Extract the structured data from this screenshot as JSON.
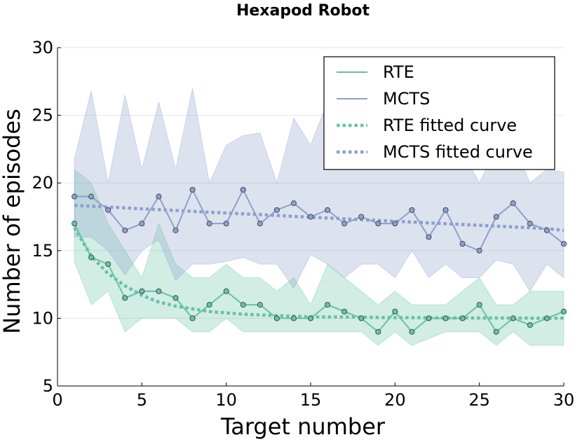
{
  "chart_data": {
    "type": "line",
    "title": "Hexapod Robot",
    "xlabel": "Target number",
    "ylabel": "Number of episodes",
    "xlim": [
      0,
      30
    ],
    "ylim": [
      5,
      30
    ],
    "xticks": [
      0,
      5,
      10,
      15,
      20,
      25,
      30
    ],
    "yticks": [
      5,
      10,
      15,
      20,
      25,
      30
    ],
    "grid": true,
    "legend_position": "top-right",
    "x": [
      1,
      2,
      3,
      4,
      5,
      6,
      7,
      8,
      9,
      10,
      11,
      12,
      13,
      14,
      15,
      16,
      17,
      18,
      19,
      20,
      21,
      22,
      23,
      24,
      25,
      26,
      27,
      28,
      29,
      30
    ],
    "series": [
      {
        "name": "RTE",
        "style": "solid-with-markers",
        "color": "#66c2a5",
        "values": [
          17,
          14.5,
          14,
          11.5,
          12,
          12,
          11.5,
          10,
          11,
          12,
          11,
          11,
          10,
          10,
          10,
          11,
          10.5,
          10,
          9,
          10.5,
          9,
          10,
          10,
          10,
          11,
          9,
          10,
          9.5,
          10,
          10.5
        ],
        "band_upper": [
          21,
          20,
          17,
          15,
          13,
          17,
          14,
          13,
          13,
          14,
          13,
          13,
          12,
          13,
          11,
          14,
          13,
          12,
          11,
          12,
          11,
          11,
          11,
          12,
          13,
          11,
          11,
          12,
          12,
          12
        ],
        "band_lower": [
          14.2,
          11,
          12,
          9,
          10,
          10,
          10,
          9,
          9,
          10,
          9,
          9,
          9,
          9,
          9,
          9,
          9,
          9,
          8,
          9,
          8,
          8.5,
          9,
          9,
          9,
          8,
          9,
          8,
          8,
          8
        ]
      },
      {
        "name": "MCTS",
        "style": "solid-with-markers",
        "color": "#8da0cb",
        "values": [
          19,
          19,
          18,
          16.5,
          17,
          19,
          16.5,
          19.5,
          17,
          17,
          19.5,
          17,
          18,
          18.5,
          17.5,
          18,
          17,
          17.5,
          17,
          17,
          18,
          16,
          18,
          15.5,
          15,
          17.5,
          18.5,
          17,
          16.5,
          15.5
        ],
        "band_upper": [
          21.8,
          26.8,
          20,
          26.5,
          21,
          26,
          21,
          27,
          20,
          22.8,
          23.5,
          23.7,
          20,
          24.8,
          22.8,
          26,
          24,
          24.4,
          24,
          23.6,
          25.9,
          23,
          24,
          22.4,
          20,
          22.6,
          23,
          20,
          21,
          20.8
        ],
        "band_lower": [
          16,
          16,
          15,
          13.2,
          15,
          15.8,
          12.8,
          14,
          14,
          14.2,
          14.5,
          14,
          14,
          12.2,
          14.7,
          14,
          13,
          14,
          14,
          13,
          15,
          13,
          14,
          13,
          13,
          14.3,
          14,
          12,
          14,
          13
        ]
      },
      {
        "name": "RTE fitted curve",
        "style": "dotted",
        "color": "#66c2a5",
        "values": [
          16.7,
          14.6,
          13.3,
          12.4,
          11.7,
          11.2,
          10.9,
          10.7,
          10.5,
          10.4,
          10.3,
          10.25,
          10.2,
          10.15,
          10.1,
          10.1,
          10.1,
          10.08,
          10.06,
          10.05,
          10.05,
          10.04,
          10.03,
          10.03,
          10.02,
          10.02,
          10.02,
          10.01,
          10.01,
          10.01
        ]
      },
      {
        "name": "MCTS fitted curve",
        "style": "dotted",
        "color": "#8da0cb",
        "values": [
          18.35,
          18.29,
          18.22,
          18.16,
          18.09,
          18.03,
          17.97,
          17.9,
          17.84,
          17.78,
          17.72,
          17.66,
          17.6,
          17.53,
          17.47,
          17.41,
          17.35,
          17.29,
          17.23,
          17.17,
          17.11,
          17.05,
          16.99,
          16.93,
          16.87,
          16.81,
          16.75,
          16.69,
          16.63,
          16.5
        ]
      }
    ],
    "legend": [
      "RTE",
      "MCTS",
      "RTE fitted curve",
      "MCTS fitted curve"
    ]
  }
}
